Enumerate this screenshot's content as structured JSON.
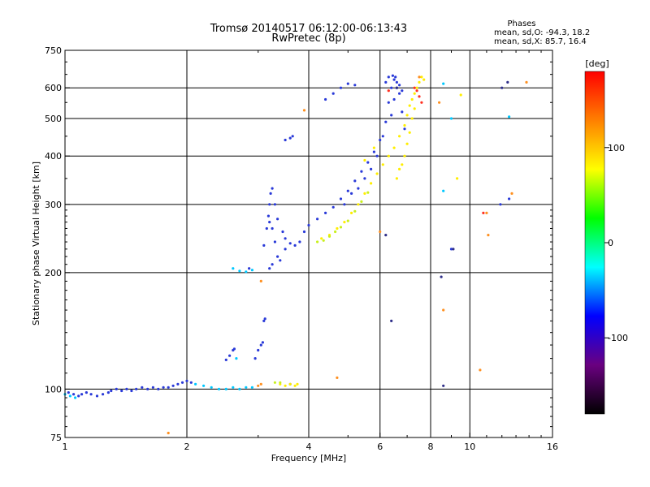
{
  "chart_data": {
    "type": "scatter",
    "title": "Tromsø 20140517 06:12:00-06:13:43",
    "subtitle": "RwPretec (8p)",
    "xlabel": "Frequency [MHz]",
    "ylabel": "Stationary phase Virtual Height [km]",
    "x_scale": "log",
    "y_scale": "log",
    "xlim": [
      1,
      16
    ],
    "ylim": [
      75,
      750
    ],
    "x_ticks": [
      1,
      2,
      4,
      6,
      8,
      10,
      16
    ],
    "y_ticks": [
      75,
      100,
      200,
      300,
      400,
      500,
      600,
      750
    ],
    "grid": true,
    "stats": {
      "heading": "Phases",
      "line_o": "mean, sd,O: -94.3, 18.2",
      "line_x": "mean, sd,X:  85.7, 16.4"
    },
    "colorbar": {
      "label": "[deg]",
      "range": [
        -180,
        180
      ],
      "ticks": [
        100,
        0,
        -100
      ],
      "stops": [
        "#000000",
        "#6a0080",
        "#0000ff",
        "#00ffff",
        "#00ff00",
        "#ffff00",
        "#ff8000",
        "#ff0000"
      ]
    },
    "series": [
      {
        "color": "#2a3ad8",
        "points": [
          [
            1.02,
            98
          ],
          [
            1.05,
            97
          ],
          [
            1.08,
            96
          ],
          [
            1.1,
            97
          ],
          [
            1.13,
            98
          ],
          [
            1.16,
            97
          ],
          [
            1.2,
            96
          ],
          [
            1.24,
            97
          ],
          [
            1.28,
            98
          ],
          [
            1.3,
            99
          ],
          [
            1.34,
            100
          ],
          [
            1.38,
            99
          ],
          [
            1.42,
            100
          ],
          [
            1.46,
            99
          ],
          [
            1.5,
            100
          ],
          [
            1.55,
            101
          ],
          [
            1.6,
            100
          ],
          [
            1.65,
            101
          ],
          [
            1.7,
            100
          ],
          [
            1.75,
            101
          ],
          [
            1.8,
            101
          ],
          [
            1.85,
            102
          ],
          [
            1.9,
            103
          ],
          [
            1.95,
            104
          ],
          [
            2.0,
            105
          ],
          [
            2.05,
            104
          ],
          [
            2.5,
            119
          ],
          [
            2.55,
            122
          ],
          [
            2.6,
            126
          ],
          [
            2.62,
            127
          ],
          [
            2.95,
            120
          ],
          [
            3.0,
            126
          ],
          [
            3.05,
            130
          ],
          [
            3.08,
            132
          ],
          [
            3.1,
            150
          ],
          [
            3.12,
            152
          ],
          [
            2.85,
            205
          ],
          [
            3.1,
            235
          ],
          [
            3.15,
            260
          ],
          [
            3.18,
            280
          ],
          [
            3.2,
            300
          ],
          [
            3.22,
            320
          ],
          [
            3.25,
            330
          ],
          [
            3.3,
            300
          ],
          [
            3.35,
            275
          ],
          [
            3.45,
            255
          ],
          [
            3.5,
            245
          ],
          [
            3.6,
            238
          ],
          [
            3.7,
            235
          ],
          [
            3.8,
            240
          ],
          [
            3.9,
            255
          ],
          [
            4.0,
            265
          ],
          [
            4.2,
            275
          ],
          [
            4.4,
            285
          ],
          [
            4.6,
            295
          ],
          [
            4.8,
            310
          ],
          [
            5.0,
            325
          ],
          [
            5.2,
            345
          ],
          [
            5.4,
            365
          ],
          [
            5.6,
            385
          ],
          [
            5.8,
            410
          ],
          [
            6.0,
            440
          ],
          [
            6.2,
            490
          ],
          [
            6.3,
            550
          ],
          [
            6.4,
            600
          ],
          [
            6.5,
            630
          ],
          [
            6.6,
            620
          ],
          [
            6.7,
            580
          ],
          [
            6.8,
            520
          ],
          [
            6.9,
            470
          ],
          [
            3.5,
            440
          ],
          [
            3.6,
            445
          ],
          [
            3.65,
            450
          ],
          [
            4.4,
            560
          ],
          [
            4.6,
            580
          ],
          [
            4.8,
            600
          ],
          [
            5.0,
            615
          ],
          [
            5.2,
            610
          ],
          [
            3.2,
            205
          ],
          [
            3.25,
            210
          ],
          [
            3.35,
            220
          ],
          [
            3.4,
            215
          ],
          [
            3.5,
            230
          ],
          [
            3.3,
            240
          ],
          [
            3.25,
            260
          ],
          [
            3.2,
            270
          ],
          [
            4.9,
            300
          ],
          [
            5.1,
            320
          ],
          [
            5.3,
            330
          ],
          [
            5.5,
            350
          ],
          [
            5.7,
            370
          ],
          [
            5.9,
            400
          ],
          [
            6.1,
            450
          ],
          [
            6.4,
            510
          ],
          [
            6.5,
            560
          ],
          [
            6.6,
            600
          ],
          [
            6.2,
            620
          ],
          [
            6.3,
            640
          ],
          [
            6.45,
            645
          ],
          [
            6.55,
            640
          ],
          [
            6.7,
            610
          ],
          [
            6.8,
            590
          ],
          [
            9.0,
            230
          ],
          [
            11.9,
            300
          ],
          [
            12.5,
            310
          ],
          [
            3.6,
            103
          ]
        ]
      },
      {
        "color": "#ffee00",
        "points": [
          [
            4.3,
            245
          ],
          [
            4.5,
            250
          ],
          [
            4.7,
            260
          ],
          [
            4.9,
            270
          ],
          [
            5.1,
            285
          ],
          [
            5.3,
            300
          ],
          [
            5.5,
            320
          ],
          [
            5.7,
            340
          ],
          [
            5.9,
            360
          ],
          [
            6.1,
            380
          ],
          [
            6.3,
            400
          ],
          [
            6.5,
            420
          ],
          [
            6.7,
            450
          ],
          [
            6.9,
            480
          ],
          [
            7.0,
            510
          ],
          [
            7.1,
            540
          ],
          [
            7.2,
            560
          ],
          [
            7.3,
            580
          ],
          [
            7.4,
            600
          ],
          [
            7.5,
            620
          ],
          [
            7.6,
            640
          ],
          [
            7.7,
            630
          ],
          [
            6.8,
            380
          ],
          [
            6.9,
            400
          ],
          [
            7.0,
            430
          ],
          [
            7.1,
            460
          ],
          [
            7.2,
            500
          ],
          [
            7.3,
            530
          ],
          [
            6.6,
            350
          ],
          [
            6.7,
            370
          ],
          [
            3.4,
            103
          ],
          [
            3.5,
            102
          ],
          [
            3.6,
            103
          ],
          [
            3.7,
            102
          ],
          [
            3.75,
            103
          ],
          [
            9.3,
            350
          ],
          [
            9.5,
            575
          ],
          [
            5.5,
            390
          ],
          [
            5.8,
            420
          ]
        ]
      },
      {
        "color": "#c8f01e",
        "points": [
          [
            4.2,
            240
          ],
          [
            4.35,
            242
          ],
          [
            4.5,
            248
          ],
          [
            4.65,
            255
          ],
          [
            4.8,
            262
          ],
          [
            5.0,
            272
          ],
          [
            5.2,
            288
          ],
          [
            5.4,
            305
          ],
          [
            5.6,
            322
          ],
          [
            3.3,
            104
          ],
          [
            3.4,
            104
          ]
        ]
      },
      {
        "color": "#00c8ff",
        "points": [
          [
            1.0,
            97
          ],
          [
            1.03,
            96
          ],
          [
            1.06,
            95
          ],
          [
            2.1,
            103
          ],
          [
            2.2,
            102
          ],
          [
            2.3,
            101
          ],
          [
            2.4,
            100
          ],
          [
            2.5,
            100
          ],
          [
            2.6,
            101
          ],
          [
            2.7,
            100
          ],
          [
            2.8,
            101
          ],
          [
            2.9,
            101
          ],
          [
            2.6,
            205
          ],
          [
            2.7,
            202
          ],
          [
            2.8,
            201
          ],
          [
            2.9,
            203
          ],
          [
            2.65,
            120
          ],
          [
            8.6,
            325
          ],
          [
            9.0,
            500
          ],
          [
            12.5,
            505
          ],
          [
            8.6,
            615
          ]
        ]
      },
      {
        "color": "#ff9020",
        "points": [
          [
            3.0,
            102
          ],
          [
            3.05,
            103
          ],
          [
            7.5,
            640
          ],
          [
            8.4,
            550
          ],
          [
            11.0,
            285
          ],
          [
            11.1,
            250
          ],
          [
            12.7,
            320
          ],
          [
            13.8,
            620
          ],
          [
            10.6,
            112
          ],
          [
            8.6,
            160
          ],
          [
            4.7,
            107
          ],
          [
            1.8,
            77
          ],
          [
            3.05,
            190
          ],
          [
            6.0,
            255
          ],
          [
            3.9,
            525
          ]
        ]
      },
      {
        "color": "#ff3020",
        "points": [
          [
            7.4,
            590
          ],
          [
            7.5,
            570
          ],
          [
            7.6,
            550
          ],
          [
            7.3,
            600
          ],
          [
            10.8,
            285
          ],
          [
            6.3,
            590
          ]
        ]
      },
      {
        "color": "#30308a",
        "points": [
          [
            8.6,
            102
          ],
          [
            8.5,
            195
          ],
          [
            9.1,
            230
          ],
          [
            6.4,
            150
          ],
          [
            12.4,
            620
          ],
          [
            6.2,
            250
          ],
          [
            12.0,
            600
          ],
          [
            6.6,
            600
          ]
        ]
      }
    ]
  }
}
